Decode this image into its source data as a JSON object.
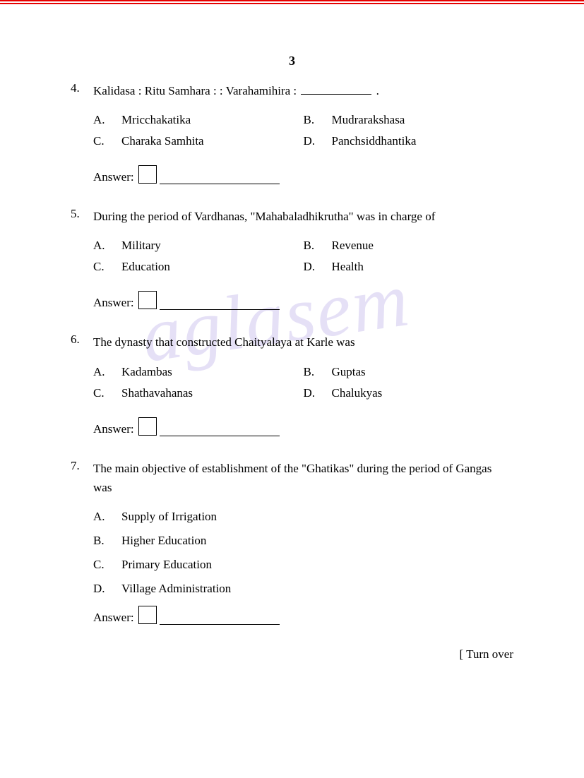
{
  "page_number": "3",
  "watermark": "aglasem",
  "answer_label": "Answer:",
  "turn_over": "[ Turn over",
  "questions": [
    {
      "num": "4.",
      "text_pre": "Kalidasa : Ritu Samhara : : Varahamihira : ",
      "text_post": " .",
      "layout": "2col",
      "options": [
        {
          "letter": "A.",
          "text": "Mricchakatika"
        },
        {
          "letter": "B.",
          "text": "Mudrarakshasa"
        },
        {
          "letter": "C.",
          "text": "Charaka Samhita"
        },
        {
          "letter": "D.",
          "text": "Panchsiddhantika"
        }
      ]
    },
    {
      "num": "5.",
      "text_pre": "During the period of Vardhanas, \"Mahabaladhikrutha\" was in charge of",
      "text_post": "",
      "layout": "2col",
      "options": [
        {
          "letter": "A.",
          "text": "Military"
        },
        {
          "letter": "B.",
          "text": "Revenue"
        },
        {
          "letter": "C.",
          "text": "Education"
        },
        {
          "letter": "D.",
          "text": "Health"
        }
      ]
    },
    {
      "num": "6.",
      "text_pre": "The dynasty that constructed Chaityalaya at Karle was",
      "text_post": "",
      "layout": "2col",
      "options": [
        {
          "letter": "A.",
          "text": "Kadambas"
        },
        {
          "letter": "B.",
          "text": "Guptas"
        },
        {
          "letter": "C.",
          "text": "Shathavahanas"
        },
        {
          "letter": "D.",
          "text": "Chalukyas"
        }
      ]
    },
    {
      "num": "7.",
      "text_pre": "The main objective of establishment of the \"Ghatikas\" during the period of Gangas was",
      "text_post": "",
      "layout": "1col",
      "options": [
        {
          "letter": "A.",
          "text": "Supply of Irrigation"
        },
        {
          "letter": "B.",
          "text": "Higher Education"
        },
        {
          "letter": "C.",
          "text": "Primary Education"
        },
        {
          "letter": "D.",
          "text": "Village Administration"
        }
      ]
    }
  ]
}
